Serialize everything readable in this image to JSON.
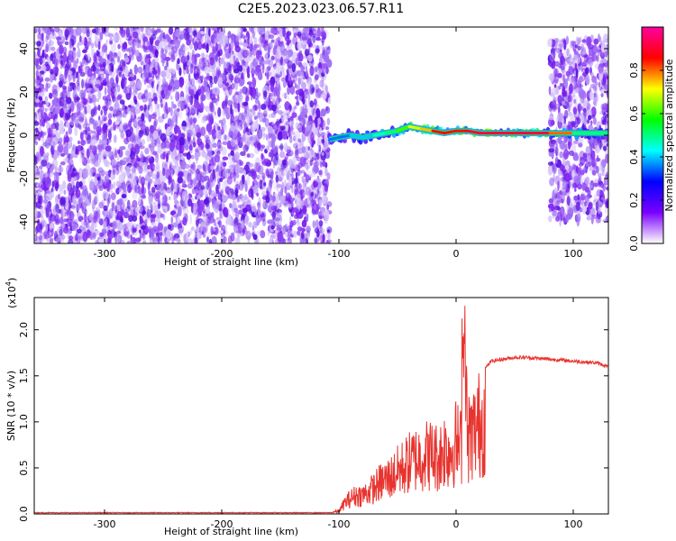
{
  "title": "C2E5.2023.023.06.57.R11",
  "colors": {
    "snr_line": "#e8332e",
    "spectrogram_scatter": "#7a1ff0",
    "colormap": [
      "#ffffff",
      "#7a00ff",
      "#0000ff",
      "#00ffff",
      "#00ff00",
      "#ffff00",
      "#ff0000",
      "#ff00a0"
    ]
  },
  "chart_data": [
    {
      "type": "heatmap",
      "title": "",
      "xlabel": "Height of straight line (km)",
      "ylabel": "Frequency (Hz)",
      "xlim": [
        -360,
        130
      ],
      "ylim": [
        -50,
        50
      ],
      "x_ticks": [
        -300,
        -200,
        -100,
        0,
        100
      ],
      "x_tick_labels": [
        "-300",
        "-200",
        "-100",
        "0",
        "100"
      ],
      "y_ticks": [
        -40,
        -20,
        0,
        20,
        40
      ],
      "y_tick_labels": [
        "-40",
        "-20",
        "0",
        "20",
        "40"
      ],
      "colorbar": {
        "label": "Normalized spectral amplitude",
        "range": [
          0.0,
          1.0
        ],
        "ticks": [
          0.0,
          0.2,
          0.4,
          0.6,
          0.8
        ],
        "tick_labels": [
          "0.0",
          "0.2",
          "0.4",
          "0.6",
          "0.8"
        ]
      },
      "regions": [
        {
          "description": "noise",
          "x_range": [
            -360,
            -108
          ],
          "freq_range": [
            -50,
            50
          ],
          "amplitude": 0.1
        },
        {
          "description": "noise",
          "x_range": [
            80,
            130
          ],
          "freq_range": [
            -40,
            45
          ],
          "amplitude": 0.1
        }
      ],
      "ridge": {
        "x": [
          -108,
          -100,
          -90,
          -80,
          -70,
          -60,
          -50,
          -40,
          -30,
          -20,
          -10,
          0,
          10,
          20,
          40,
          60,
          80,
          100,
          130
        ],
        "freq": [
          -2,
          -1,
          0,
          -1,
          0,
          1,
          2,
          4,
          3,
          2,
          1,
          2,
          2,
          1,
          1,
          1,
          1,
          1,
          1
        ],
        "amplitude": [
          0.35,
          0.35,
          0.4,
          0.4,
          0.45,
          0.5,
          0.6,
          0.7,
          0.75,
          0.85,
          0.85,
          0.85,
          0.9,
          0.9,
          0.9,
          0.9,
          0.8,
          0.5,
          0.4
        ]
      }
    },
    {
      "type": "line",
      "title": "",
      "xlabel": "Height of straight line (km)",
      "ylabel": "SNR (10 * v/v)",
      "y_multiplier_label": "(x10",
      "y_multiplier_exp": "4",
      "y_multiplier_close": ")",
      "xlim": [
        -360,
        130
      ],
      "ylim": [
        0,
        2.35
      ],
      "x_ticks": [
        -300,
        -200,
        -100,
        0,
        100
      ],
      "x_tick_labels": [
        "-300",
        "-200",
        "-100",
        "0",
        "100"
      ],
      "y_ticks": [
        0.0,
        0.5,
        1.0,
        1.5,
        2.0
      ],
      "y_tick_labels": [
        "0.0",
        "0.5",
        "1.0",
        "1.5",
        "2.0"
      ],
      "series": [
        {
          "x": [
            -360,
            -300,
            -200,
            -120,
            -100,
            -95,
            -90,
            -85,
            -80,
            -75,
            -70,
            -65,
            -60,
            -55,
            -50,
            -45,
            -40,
            -35,
            -30,
            -25,
            -20,
            -15,
            -10,
            -5,
            0,
            5,
            7,
            10,
            15,
            20,
            25,
            30,
            40,
            50,
            60,
            70,
            80,
            90,
            100,
            110,
            120,
            130
          ],
          "y": [
            0.01,
            0.01,
            0.01,
            0.01,
            0.04,
            0.18,
            0.25,
            0.3,
            0.3,
            0.35,
            0.42,
            0.5,
            0.55,
            0.6,
            0.68,
            0.75,
            0.82,
            0.88,
            0.92,
            0.95,
            0.95,
            0.9,
            1.05,
            1.0,
            1.15,
            1.05,
            2.3,
            1.22,
            1.3,
            1.45,
            1.58,
            1.66,
            1.68,
            1.7,
            1.7,
            1.69,
            1.68,
            1.67,
            1.66,
            1.65,
            1.64,
            1.6
          ]
        }
      ]
    }
  ]
}
